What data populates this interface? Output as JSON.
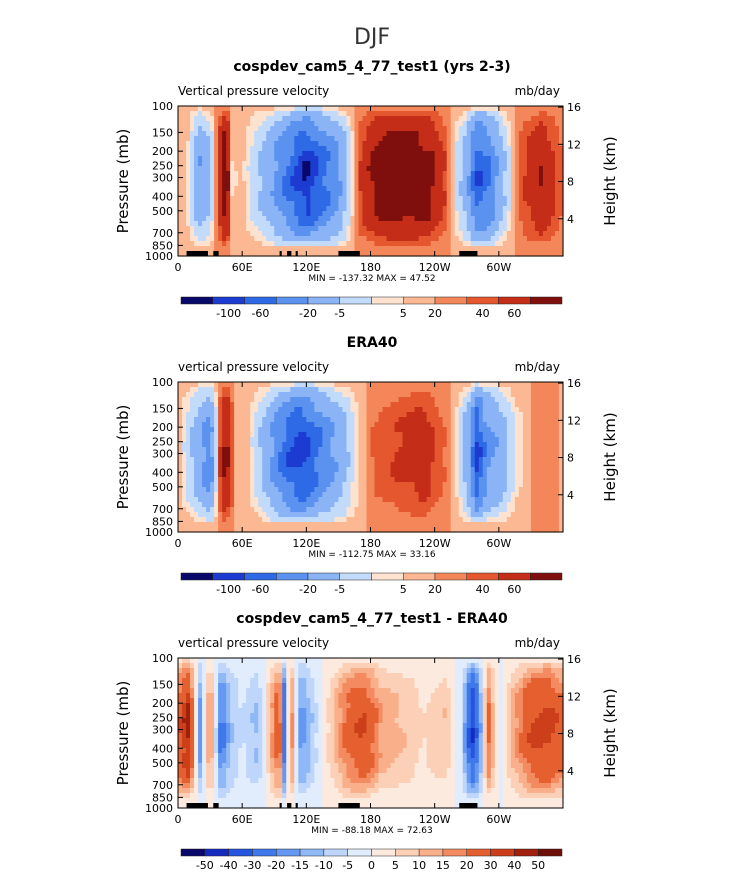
{
  "season": "DJF",
  "colors": {
    "palette_main": [
      "#08086b",
      "#1c3bd0",
      "#2f6ae6",
      "#5b92f0",
      "#8bb4f6",
      "#c2dbfb",
      "#fde2cf",
      "#fbb892",
      "#f4875a",
      "#e5572f",
      "#c42d18",
      "#7f0f0c"
    ],
    "palette_diff": [
      "#08086b",
      "#152bbf",
      "#2655dd",
      "#3f78ea",
      "#6498f2",
      "#8fb8f7",
      "#bed6fb",
      "#e1ecfd",
      "#fdeadf",
      "#fcd0b6",
      "#f9b08a",
      "#f38a60",
      "#e5602f",
      "#cc3f1a",
      "#a0200e",
      "#6e0e09"
    ],
    "land_bar": "#000000"
  },
  "panels": [
    {
      "title": "cospdev_cam5_4_77_test1 (yrs 2-3)",
      "variable": "Vertical pressure velocity",
      "units": "mb/day",
      "ylabel_left": "Pressure (mb)",
      "ylabel_right": "Height (km)",
      "stats": "MIN = -137.32   MAX =  47.52",
      "colorbar_labels": [
        "-100",
        "-60",
        "-20",
        "-5",
        "5",
        "20",
        "40",
        "60"
      ],
      "palette": "main"
    },
    {
      "title": "ERA40",
      "variable": "vertical pressure velocity",
      "units": "mb/day",
      "ylabel_left": "Pressure (mb)",
      "ylabel_right": "Height (km)",
      "stats": "MIN = -112.75   MAX =  33.16",
      "colorbar_labels": [
        "-100",
        "-60",
        "-20",
        "-5",
        "5",
        "20",
        "40",
        "60"
      ],
      "palette": "main"
    },
    {
      "title": "cospdev_cam5_4_77_test1 - ERA40",
      "variable": "vertical pressure velocity",
      "units": "mb/day",
      "ylabel_left": "Pressure (mb)",
      "ylabel_right": "Height (km)",
      "stats": "MIN =  -88.18   MAX =  72.63",
      "colorbar_labels": [
        "-50",
        "-40",
        "-30",
        "-20",
        "-15",
        "-10",
        "-5",
        "0",
        "5",
        "10",
        "15",
        "20",
        "30",
        "40",
        "50"
      ],
      "palette": "diff"
    }
  ],
  "chart_data": [
    {
      "type": "heatmap",
      "title": "cospdev_cam5_4_77_test1 (yrs 2-3)",
      "ylabel": "Pressure (mb)",
      "y2label": "Height (km)",
      "x_ticks": [
        "0",
        "60E",
        "120E",
        "180",
        "120W",
        "60W"
      ],
      "x_tick_lon": [
        0,
        60,
        120,
        180,
        240,
        300
      ],
      "xlim": [
        0,
        360
      ],
      "y_ticks": [
        "100",
        "150",
        "200",
        "250",
        "300",
        "400",
        "500",
        "700",
        "850",
        "1000"
      ],
      "y2_ticks": [
        "16",
        "12",
        "8",
        "4"
      ],
      "min": -137.32,
      "max": 47.52,
      "levels": [
        -100,
        -80,
        -60,
        -40,
        -20,
        -10,
        -5,
        0,
        5,
        10,
        20,
        30,
        40,
        50,
        60
      ],
      "lon_profile": [
        [
          0,
          0
        ],
        [
          10,
          -8
        ],
        [
          20,
          -40
        ],
        [
          30,
          -25
        ],
        [
          40,
          20
        ],
        [
          45,
          35
        ],
        [
          50,
          -6
        ],
        [
          60,
          -3
        ],
        [
          80,
          -25
        ],
        [
          95,
          -50
        ],
        [
          110,
          -80
        ],
        [
          120,
          -100
        ],
        [
          135,
          -70
        ],
        [
          150,
          -45
        ],
        [
          160,
          -15
        ],
        [
          170,
          10
        ],
        [
          185,
          25
        ],
        [
          200,
          35
        ],
        [
          215,
          30
        ],
        [
          235,
          25
        ],
        [
          250,
          10
        ],
        [
          262,
          -15
        ],
        [
          270,
          -30
        ],
        [
          280,
          -80
        ],
        [
          292,
          -60
        ],
        [
          300,
          -35
        ],
        [
          310,
          -10
        ],
        [
          320,
          8
        ],
        [
          340,
          20
        ],
        [
          360,
          5
        ]
      ]
    },
    {
      "type": "heatmap",
      "title": "ERA40",
      "ylabel": "Pressure (mb)",
      "y2label": "Height (km)",
      "x_ticks": [
        "0",
        "60E",
        "120E",
        "180",
        "120W",
        "60W"
      ],
      "x_tick_lon": [
        0,
        60,
        120,
        180,
        240,
        300
      ],
      "xlim": [
        0,
        360
      ],
      "y_ticks": [
        "100",
        "150",
        "200",
        "250",
        "300",
        "400",
        "500",
        "700",
        "850",
        "1000"
      ],
      "y2_ticks": [
        "16",
        "12",
        "8",
        "4"
      ],
      "min": -112.75,
      "max": 33.16,
      "levels": [
        -100,
        -80,
        -60,
        -40,
        -20,
        -10,
        -5,
        0,
        5,
        10,
        20,
        30,
        40,
        50,
        60
      ],
      "lon_profile": [
        [
          0,
          0
        ],
        [
          15,
          -25
        ],
        [
          30,
          -55
        ],
        [
          40,
          15
        ],
        [
          45,
          25
        ],
        [
          55,
          -5
        ],
        [
          65,
          -3
        ],
        [
          80,
          -25
        ],
        [
          100,
          -70
        ],
        [
          115,
          -90
        ],
        [
          130,
          -65
        ],
        [
          150,
          -35
        ],
        [
          165,
          -10
        ],
        [
          180,
          5
        ],
        [
          200,
          10
        ],
        [
          230,
          15
        ],
        [
          250,
          5
        ],
        [
          262,
          -10
        ],
        [
          272,
          -35
        ],
        [
          280,
          -90
        ],
        [
          288,
          -50
        ],
        [
          300,
          -35
        ],
        [
          315,
          -10
        ],
        [
          330,
          0
        ],
        [
          345,
          5
        ],
        [
          360,
          -2
        ]
      ]
    },
    {
      "type": "heatmap",
      "title": "cospdev_cam5_4_77_test1 - ERA40",
      "ylabel": "Pressure (mb)",
      "y2label": "Height (km)",
      "x_ticks": [
        "0",
        "60E",
        "120E",
        "180",
        "120W",
        "60W"
      ],
      "x_tick_lon": [
        0,
        60,
        120,
        180,
        240,
        300
      ],
      "xlim": [
        0,
        360
      ],
      "y_ticks": [
        "100",
        "150",
        "200",
        "250",
        "300",
        "400",
        "500",
        "700",
        "850",
        "1000"
      ],
      "y2_ticks": [
        "16",
        "12",
        "8",
        "4"
      ],
      "min": -88.18,
      "max": 72.63,
      "levels": [
        -50,
        -40,
        -30,
        -20,
        -15,
        -10,
        -5,
        0,
        5,
        10,
        15,
        20,
        30,
        40,
        50
      ],
      "lon_profile": [
        [
          0,
          25
        ],
        [
          10,
          45
        ],
        [
          20,
          -20
        ],
        [
          30,
          20
        ],
        [
          40,
          -25
        ],
        [
          50,
          -10
        ],
        [
          60,
          -5
        ],
        [
          75,
          -12
        ],
        [
          95,
          30
        ],
        [
          100,
          -35
        ],
        [
          105,
          25
        ],
        [
          115,
          -20
        ],
        [
          125,
          -10
        ],
        [
          140,
          5
        ],
        [
          160,
          25
        ],
        [
          175,
          30
        ],
        [
          190,
          15
        ],
        [
          210,
          10
        ],
        [
          230,
          5
        ],
        [
          250,
          10
        ],
        [
          265,
          -5
        ],
        [
          275,
          -40
        ],
        [
          282,
          -20
        ],
        [
          290,
          25
        ],
        [
          300,
          -5
        ],
        [
          310,
          10
        ],
        [
          330,
          30
        ],
        [
          345,
          35
        ],
        [
          360,
          25
        ]
      ]
    }
  ]
}
